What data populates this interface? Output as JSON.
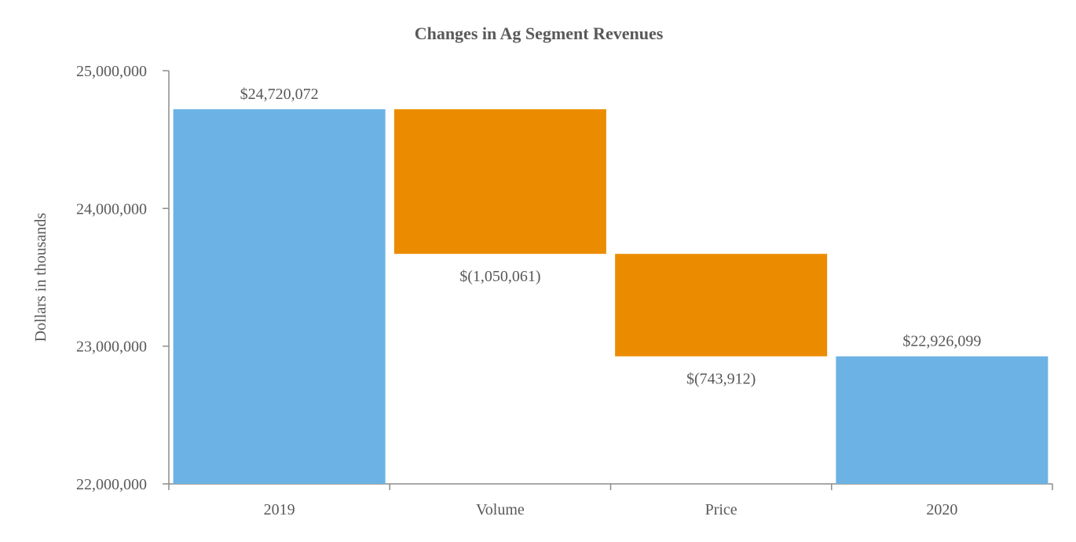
{
  "chart_data": {
    "type": "bar",
    "subtype": "waterfall",
    "title": "Changes in Ag Segment Revenues",
    "xlabel": "",
    "ylabel": "Dollars in thousands",
    "ylim": [
      22000000,
      25000000
    ],
    "yticks": [
      22000000,
      23000000,
      24000000,
      25000000
    ],
    "ytick_labels": [
      "22,000,000",
      "23,000,000",
      "24,000,000",
      "25,000,000"
    ],
    "categories": [
      "2019",
      "Volume",
      "Price",
      "2020"
    ],
    "values": [
      24720072,
      -1050061,
      -743912,
      22926099
    ],
    "kinds": [
      "total",
      "change",
      "change",
      "total"
    ],
    "data_labels": [
      "$24,720,072",
      "$(1,050,061)",
      "$(743,912)",
      "$22,926,099"
    ],
    "grid": false,
    "legend": "none",
    "colors": {
      "total": "#6CB2E4",
      "decrease": "#EB8C00",
      "axis": "#8C8C8C",
      "text": "#595959"
    }
  }
}
